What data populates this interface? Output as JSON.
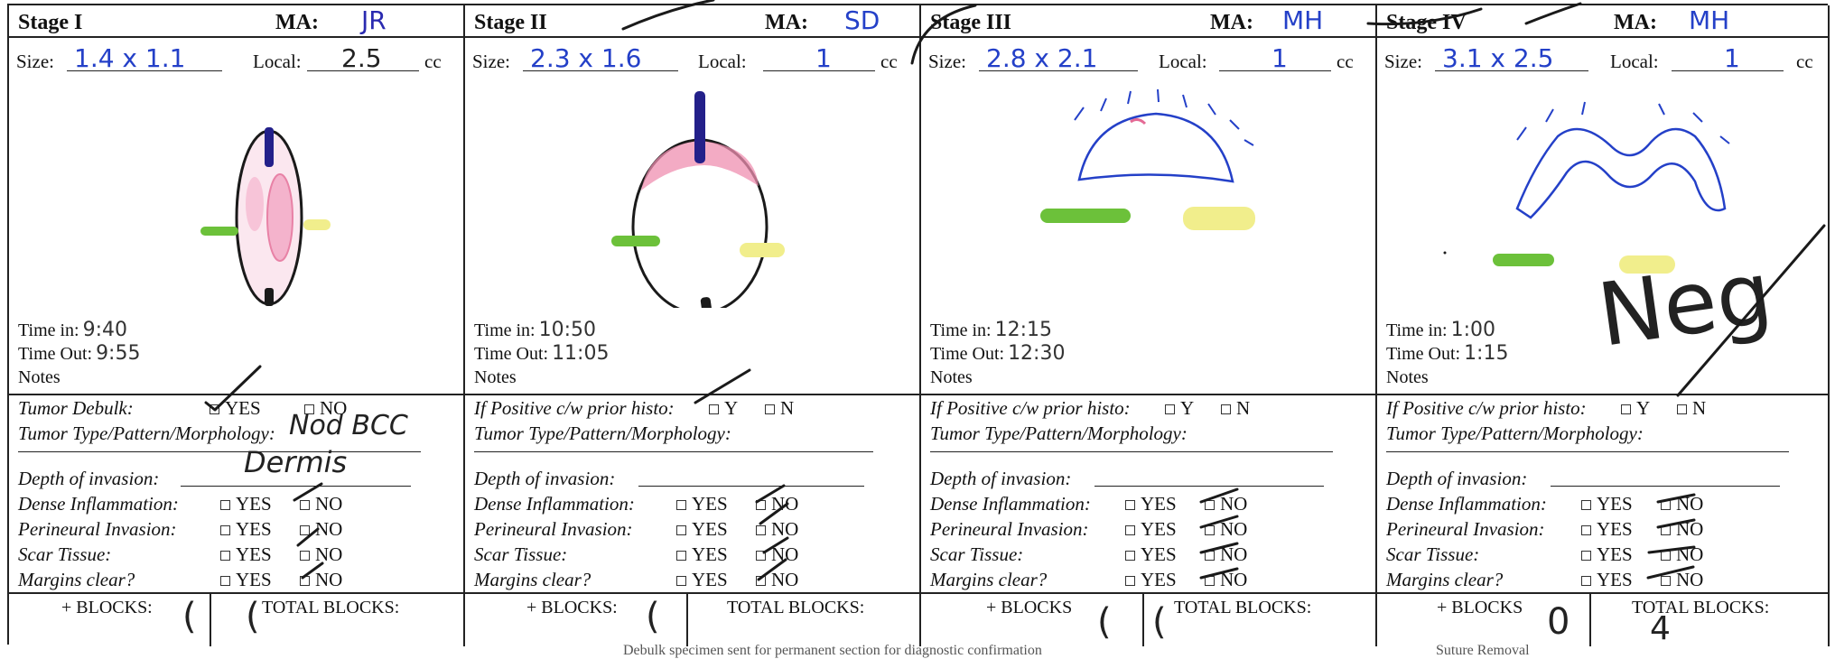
{
  "labels": {
    "ma": "MA:",
    "size": "Size:",
    "local": "Local:",
    "cc": "cc",
    "time_in": "Time in:",
    "time_out": "Time Out:",
    "notes": "Notes",
    "tumor_debulk": "Tumor Debulk:",
    "positive_prior": "If Positive c/w prior histo:",
    "tumor_type": "Tumor Type/Pattern/Morphology:",
    "depth": "Depth of invasion:",
    "dense_inflammation": "Dense Inflammation:",
    "perineural_invasion": "Perineural Invasion:",
    "scar_tissue": "Scar Tissue:",
    "margins_clear": "Margins clear?",
    "yes": "YES",
    "no": "NO",
    "y": "Y",
    "n": "N",
    "blocks_plus": "+ BLOCKS:",
    "blocks_plus_nocolon": "+ BLOCKS",
    "total_blocks": "TOTAL BLOCKS:"
  },
  "stages": [
    {
      "title": "Stage I",
      "ma": "JR",
      "size": "1.4 x 1.1",
      "local": "2.5",
      "time_in": "9:40",
      "time_out": "9:55",
      "tumor_type_value": "Nod BCC",
      "depth_value": "Dermis",
      "plus_blocks": "(",
      "total_blocks": "("
    },
    {
      "title": "Stage II",
      "ma": "SD",
      "size": "2.3 x 1.6",
      "local": "1",
      "time_in": "10:50",
      "time_out": "11:05",
      "tumor_type_value": "",
      "depth_value": "",
      "plus_blocks": "(",
      "total_blocks": ""
    },
    {
      "title": "Stage III",
      "ma": "MH",
      "size": "2.8 x 2.1",
      "local": "1",
      "time_in": "12:15",
      "time_out": "12:30",
      "tumor_type_value": "",
      "depth_value": "",
      "plus_blocks": "(",
      "total_blocks": "("
    },
    {
      "title": "Stage IV",
      "ma": "MH",
      "size": "3.1 x 2.5",
      "local": "1",
      "time_in": "1:00",
      "time_out": "1:15",
      "tumor_type_value": "",
      "depth_value": "",
      "plus_blocks": "0",
      "total_blocks": "4",
      "annotation": "Neg"
    }
  ],
  "footer": {
    "left_text": "Debulk specimen sent for permanent section for diagnostic confirmation",
    "right_text": "Suture Removal"
  },
  "colors": {
    "ink_blue": "#2440c8",
    "ink_black": "#1a1a1a",
    "marker_pink": "#e46a95",
    "marker_green": "#6cc13a",
    "marker_yellow": "#f1ee8c",
    "marker_navy": "#23208a"
  }
}
